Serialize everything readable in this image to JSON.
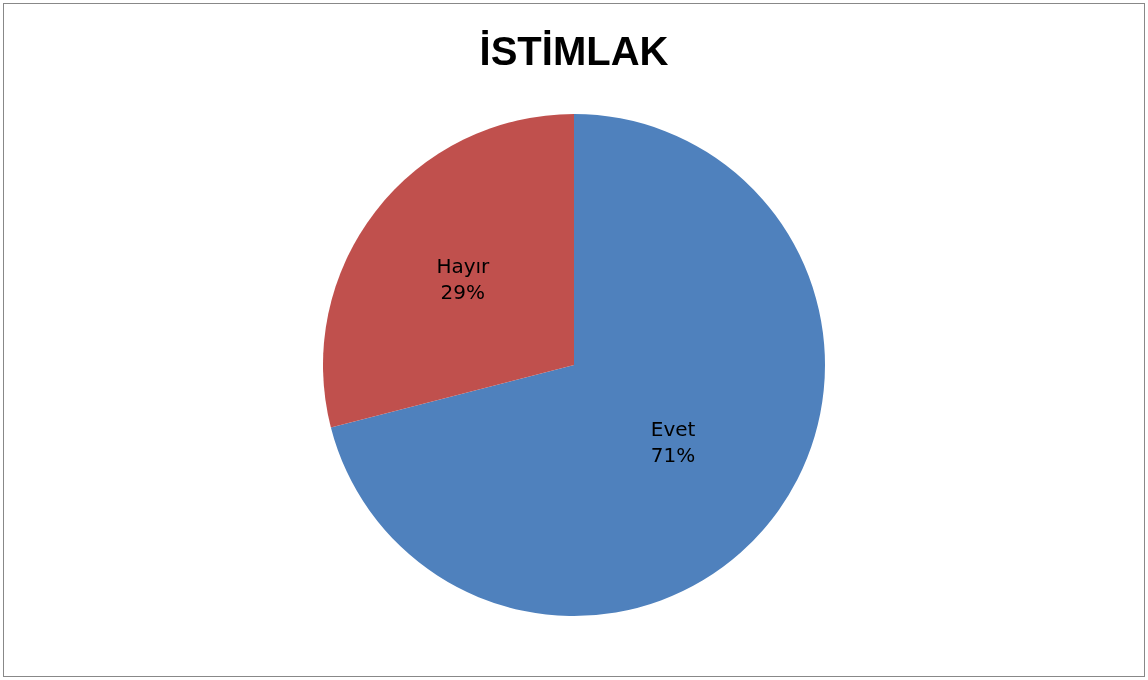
{
  "chart_data": {
    "type": "pie",
    "title": "İSTİMLAK",
    "categories": [
      "Evet",
      "Hayır"
    ],
    "values": [
      71,
      29
    ],
    "colors": [
      "#4f81bd",
      "#c0504d"
    ],
    "value_labels": [
      "71%",
      "29%"
    ],
    "legend": false
  }
}
